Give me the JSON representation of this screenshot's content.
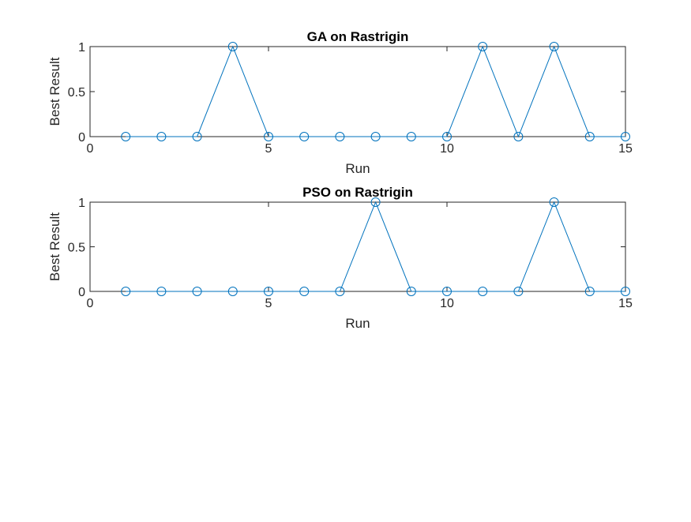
{
  "figure": {
    "background": "#ffffff"
  },
  "chart_data": [
    {
      "type": "line",
      "title": "GA on Rastrigin",
      "xlabel": "Run",
      "ylabel": "Best Result",
      "xlim": [
        0,
        15
      ],
      "ylim": [
        0,
        1
      ],
      "xticks": [
        0,
        5,
        10,
        15
      ],
      "xtick_labels": [
        "0",
        "5",
        "10",
        "15"
      ],
      "yticks": [
        0,
        0.5,
        1
      ],
      "ytick_labels": [
        "0",
        "0.5",
        "1"
      ],
      "grid": false,
      "marker": "circle",
      "color": "#0072bd",
      "series": [
        {
          "x": [
            1,
            2,
            3,
            4,
            5,
            6,
            7,
            8,
            9,
            10,
            11,
            12,
            13,
            14,
            15
          ],
          "y": [
            0,
            0,
            0,
            1,
            0,
            0,
            0,
            0,
            0,
            0,
            1,
            0,
            1,
            0,
            0
          ]
        }
      ]
    },
    {
      "type": "line",
      "title": "PSO on Rastrigin",
      "xlabel": "Run",
      "ylabel": "Best Result",
      "xlim": [
        0,
        15
      ],
      "ylim": [
        0,
        1
      ],
      "xticks": [
        0,
        5,
        10,
        15
      ],
      "xtick_labels": [
        "0",
        "5",
        "10",
        "15"
      ],
      "yticks": [
        0,
        0.5,
        1
      ],
      "ytick_labels": [
        "0",
        "0.5",
        "1"
      ],
      "grid": false,
      "marker": "circle",
      "color": "#0072bd",
      "series": [
        {
          "x": [
            1,
            2,
            3,
            4,
            5,
            6,
            7,
            8,
            9,
            10,
            11,
            12,
            13,
            14,
            15
          ],
          "y": [
            0,
            0,
            0,
            0,
            0,
            0,
            0,
            1,
            0,
            0,
            0,
            0,
            1,
            0,
            0
          ]
        }
      ]
    }
  ]
}
